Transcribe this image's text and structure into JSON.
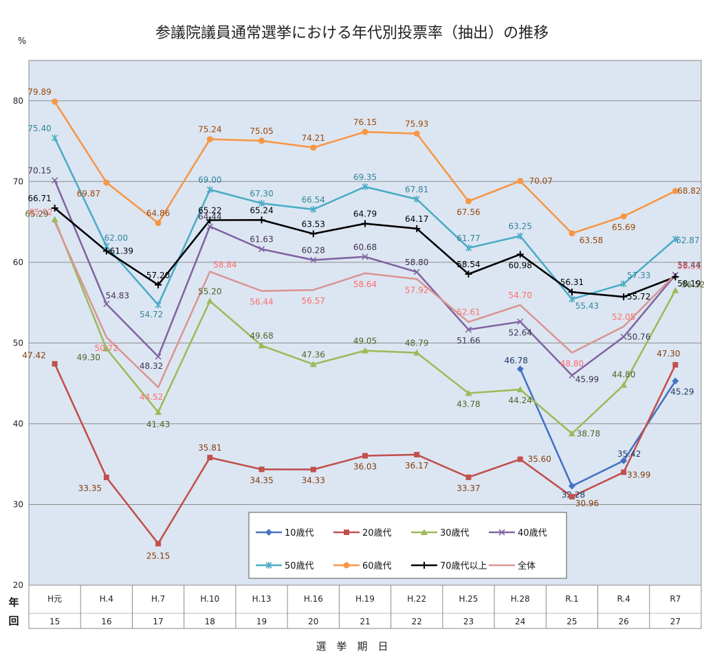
{
  "chart_data": {
    "type": "line",
    "title": "参議院議員通常選挙における年代別投票率（抽出）の推移",
    "ylabel": "%",
    "ylim": [
      20,
      85
    ],
    "yticks": [
      20,
      30,
      40,
      50,
      60,
      70,
      80
    ],
    "grid": true,
    "legend_position": "bottom-center",
    "row_labels": {
      "era": "年",
      "kai": "回"
    },
    "xlabel": "選　挙　期　日",
    "categories": [
      "H元",
      "H.4",
      "H.7",
      "H.10",
      "H.13",
      "H.16",
      "H.19",
      "H.22",
      "H.25",
      "H.28",
      "R.1",
      "R.4",
      "R7"
    ],
    "kai": [
      "15",
      "16",
      "17",
      "18",
      "19",
      "20",
      "21",
      "22",
      "23",
      "24",
      "25",
      "26",
      "27"
    ],
    "series": [
      {
        "name": "10歳代",
        "color": "#4472c4",
        "marker": "diamond",
        "values": [
          null,
          null,
          null,
          null,
          null,
          null,
          null,
          null,
          null,
          46.78,
          32.28,
          35.42,
          45.29
        ],
        "labels": [
          "",
          "",
          "",
          "",
          "",
          "",
          "",
          "",
          "",
          "46.78",
          "32.28",
          "35.42",
          "45.29"
        ]
      },
      {
        "name": "20歳代",
        "color": "#c0504d",
        "marker": "square",
        "values": [
          47.42,
          33.35,
          25.15,
          35.81,
          34.35,
          34.33,
          36.03,
          36.17,
          33.37,
          35.6,
          30.96,
          33.99,
          47.3
        ],
        "labels": [
          "47.42",
          "33.35",
          "25.15",
          "35.81",
          "34.35",
          "34.33",
          "36.03",
          "36.17",
          "33.37",
          "35.60",
          "30.96",
          "33.99",
          "47.30"
        ]
      },
      {
        "name": "30歳代",
        "color": "#9bbb59",
        "marker": "triangle",
        "values": [
          65.29,
          49.3,
          41.43,
          55.2,
          49.68,
          47.36,
          49.05,
          48.79,
          43.78,
          44.24,
          38.78,
          44.8,
          56.52
        ],
        "labels": [
          "65.29",
          "49.30",
          "41.43",
          "55.20",
          "49.68",
          "47.36",
          "49.05",
          "48.79",
          "43.78",
          "44.24",
          "38.78",
          "44.80",
          "56.52"
        ]
      },
      {
        "name": "40歳代",
        "color": "#8064a2",
        "marker": "x",
        "values": [
          70.15,
          54.83,
          48.32,
          64.44,
          61.63,
          60.28,
          60.68,
          58.8,
          51.66,
          52.64,
          45.99,
          50.76,
          58.44
        ],
        "labels": [
          "70.15",
          "54.83",
          "48.32",
          "64.44",
          "61.63",
          "60.28",
          "60.68",
          "58.80",
          "51.66",
          "52.64",
          "45.99",
          "50.76",
          "58.44"
        ]
      },
      {
        "name": "50歳代",
        "color": "#4bacc6",
        "marker": "star",
        "values": [
          75.4,
          62.0,
          54.72,
          69.0,
          67.3,
          66.54,
          69.35,
          67.81,
          61.77,
          63.25,
          55.43,
          57.33,
          62.87
        ],
        "labels": [
          "75.40",
          "62.00",
          "54.72",
          "69.00",
          "67.30",
          "66.54",
          "69.35",
          "67.81",
          "61.77",
          "63.25",
          "55.43",
          "57.33",
          "62.87"
        ]
      },
      {
        "name": "60歳代",
        "color": "#f79646",
        "marker": "circle",
        "values": [
          79.89,
          69.87,
          64.86,
          75.24,
          75.05,
          74.21,
          76.15,
          75.93,
          67.56,
          70.07,
          63.58,
          65.69,
          68.82
        ],
        "labels": [
          "79.89",
          "69.87",
          "64.86",
          "75.24",
          "75.05",
          "74.21",
          "76.15",
          "75.93",
          "67.56",
          "70.07",
          "63.58",
          "65.69",
          "68.82"
        ]
      },
      {
        "name": "70歳代以上",
        "color": "#000000",
        "marker": "plus",
        "values": [
          66.71,
          61.39,
          57.2,
          65.22,
          65.24,
          63.53,
          64.79,
          64.17,
          58.54,
          60.98,
          56.31,
          55.72,
          58.19
        ],
        "labels": [
          "66.71",
          "61.39",
          "57.20",
          "65.22",
          "65.24",
          "63.53",
          "64.79",
          "64.17",
          "58.54",
          "60.98",
          "56.31",
          "55.72",
          "58.19"
        ]
      },
      {
        "name": "全体",
        "color": "#d99694",
        "marker": "none",
        "values": [
          65.02,
          50.72,
          44.52,
          58.84,
          56.44,
          56.57,
          58.64,
          57.92,
          52.61,
          54.7,
          48.8,
          52.05,
          58.51
        ],
        "labels": [
          "65.02",
          "50.72",
          "44.52",
          "58.84",
          "56.44",
          "56.57",
          "58.64",
          "57.92",
          "52.61",
          "54.70",
          "48.80",
          "52.05",
          "58.51"
        ]
      }
    ],
    "label_colors": {
      "10歳代": "#1f3864",
      "20歳代": "#843c0c",
      "30歳代": "#4f6228",
      "40歳代": "#3f3151",
      "50歳代": "#31859c",
      "60歳代": "#984807",
      "70歳代以上": "#000000",
      "全体": "#ff6b6b"
    },
    "plot_background": "#dce6f2"
  }
}
